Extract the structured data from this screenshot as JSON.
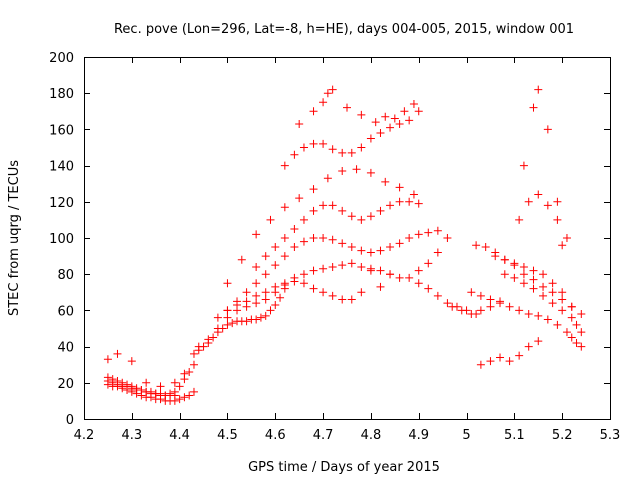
{
  "chart_data": {
    "type": "scatter",
    "title": "Rec. pove (Lon=296, Lat=-8, h=HE), days 004-005, 2015, window 001",
    "xlabel": "GPS time / Days of year 2015",
    "ylabel": "STEC from uqrg / TECUs",
    "xlim": [
      4.2,
      5.3
    ],
    "ylim": [
      0,
      200
    ],
    "xticks": [
      4.2,
      4.3,
      4.4,
      4.5,
      4.6,
      4.7,
      4.8,
      4.9,
      5.0,
      5.1,
      5.2,
      5.3
    ],
    "xtick_labels": [
      "4.2",
      "4.3",
      "4.4",
      "4.5",
      "4.6",
      "4.7",
      "4.8",
      "4.9",
      "5",
      "5.1",
      "5.2",
      "5.3"
    ],
    "yticks": [
      0,
      20,
      40,
      60,
      80,
      100,
      120,
      140,
      160,
      180,
      200
    ],
    "ytick_labels": [
      "0",
      "20",
      "40",
      "60",
      "80",
      "100",
      "120",
      "140",
      "160",
      "180",
      "200"
    ],
    "grid": false,
    "marker": "+",
    "color": "#ff0000",
    "series": [
      {
        "name": "STEC",
        "x": [
          4.25,
          4.26,
          4.27,
          4.28,
          4.29,
          4.3,
          4.31,
          4.32,
          4.33,
          4.34,
          4.35,
          4.36,
          4.37,
          4.38,
          4.39,
          4.4,
          4.41,
          4.42,
          4.25,
          4.26,
          4.27,
          4.28,
          4.29,
          4.3,
          4.31,
          4.32,
          4.33,
          4.34,
          4.35,
          4.36,
          4.37,
          4.38,
          4.39,
          4.4,
          4.41,
          4.42,
          4.43,
          4.25,
          4.26,
          4.27,
          4.28,
          4.29,
          4.3,
          4.31,
          4.32,
          4.33,
          4.34,
          4.35,
          4.36,
          4.37,
          4.38,
          4.39,
          4.25,
          4.27,
          4.3,
          4.33,
          4.36,
          4.39,
          4.41,
          4.43,
          4.43,
          4.44,
          4.45,
          4.46,
          4.47,
          4.48,
          4.49,
          4.5,
          4.51,
          4.52,
          4.53,
          4.54,
          4.55,
          4.56,
          4.57,
          4.58,
          4.59,
          4.6,
          4.61,
          4.62,
          4.44,
          4.46,
          4.48,
          4.5,
          4.52,
          4.54,
          4.56,
          4.58,
          4.6,
          4.62,
          4.64,
          4.66,
          4.68,
          4.7,
          4.72,
          4.74,
          4.76,
          4.78,
          4.8,
          4.82,
          4.84,
          4.48,
          4.5,
          4.52,
          4.54,
          4.56,
          4.58,
          4.6,
          4.62,
          4.64,
          4.66,
          4.68,
          4.7,
          4.72,
          4.74,
          4.76,
          4.78,
          4.5,
          4.52,
          4.54,
          4.56,
          4.58,
          4.6,
          4.62,
          4.64,
          4.66,
          4.68,
          4.7,
          4.72,
          4.74,
          4.76,
          4.78,
          4.8,
          4.82,
          4.84,
          4.86,
          4.88,
          4.9,
          4.92,
          4.94,
          4.56,
          4.58,
          4.6,
          4.62,
          4.64,
          4.66,
          4.68,
          4.7,
          4.72,
          4.74,
          4.76,
          4.78,
          4.8,
          4.82,
          4.84,
          4.86,
          4.88,
          4.9,
          4.5,
          4.53,
          4.56,
          4.59,
          4.62,
          4.65,
          4.68,
          4.71,
          4.74,
          4.77,
          4.8,
          4.83,
          4.86,
          4.89,
          4.62,
          4.64,
          4.66,
          4.68,
          4.7,
          4.72,
          4.74,
          4.76,
          4.78,
          4.8,
          4.82,
          4.84,
          4.86,
          4.88,
          4.9,
          4.65,
          4.68,
          4.7,
          4.71,
          4.72,
          4.75,
          4.78,
          4.81,
          4.83,
          4.85,
          4.87,
          4.89,
          4.8,
          4.84,
          4.88,
          4.9,
          4.92,
          4.94,
          4.96,
          4.98,
          5.0,
          5.02,
          4.82,
          4.86,
          4.9,
          4.92,
          4.94,
          4.96,
          5.01,
          5.03,
          5.05,
          5.07,
          5.09,
          5.11,
          5.13,
          5.15,
          5.17,
          5.19,
          5.21,
          5.22,
          5.23,
          5.24,
          5.08,
          5.1,
          5.12,
          5.14,
          5.16,
          5.18,
          5.2,
          5.22,
          5.23,
          5.24,
          5.06,
          5.08,
          5.1,
          5.12,
          5.14,
          5.16,
          5.18,
          5.2,
          5.22,
          5.11,
          5.13,
          5.15,
          5.17,
          5.19,
          5.21,
          5.12,
          5.14,
          5.15,
          5.17,
          5.19,
          5.2,
          5.03,
          5.05,
          5.07,
          5.09,
          5.11,
          5.13,
          5.15,
          5.02,
          5.04,
          5.06,
          5.08,
          5.1,
          5.12,
          5.14,
          5.16,
          5.18,
          5.2,
          5.22,
          5.24,
          4.97,
          4.99,
          5.01,
          5.03,
          5.05,
          5.07
        ],
        "y": [
          23,
          22,
          21,
          20,
          19,
          18,
          17,
          16,
          15,
          14,
          14,
          13,
          13,
          14,
          15,
          18,
          22,
          26,
          19,
          18,
          18,
          17,
          16,
          15,
          14,
          13,
          12,
          12,
          11,
          11,
          10,
          10,
          10,
          11,
          12,
          13,
          15,
          21,
          20,
          19,
          18,
          18,
          17,
          16,
          16,
          15,
          15,
          14,
          14,
          13,
          13,
          13,
          33,
          36,
          32,
          20,
          18,
          20,
          25,
          30,
          36,
          38,
          40,
          42,
          45,
          48,
          50,
          52,
          53,
          54,
          54,
          54,
          55,
          55,
          56,
          57,
          60,
          63,
          67,
          72,
          40,
          44,
          50,
          56,
          60,
          62,
          64,
          66,
          70,
          74,
          78,
          80,
          82,
          83,
          84,
          85,
          86,
          84,
          83,
          82,
          80,
          56,
          60,
          63,
          65,
          68,
          70,
          73,
          75,
          76,
          75,
          72,
          70,
          68,
          66,
          66,
          70,
          60,
          65,
          70,
          75,
          80,
          85,
          90,
          95,
          98,
          100,
          100,
          99,
          97,
          95,
          93,
          92,
          93,
          95,
          97,
          100,
          102,
          103,
          104,
          84,
          90,
          95,
          100,
          105,
          110,
          115,
          118,
          118,
          115,
          112,
          110,
          112,
          115,
          118,
          120,
          120,
          119,
          75,
          88,
          102,
          110,
          117,
          122,
          127,
          133,
          137,
          138,
          136,
          131,
          128,
          124,
          140,
          146,
          150,
          152,
          152,
          149,
          147,
          147,
          150,
          155,
          158,
          161,
          163,
          165,
          170,
          163,
          170,
          175,
          180,
          182,
          172,
          168,
          164,
          167,
          166,
          170,
          174,
          82,
          80,
          78,
          75,
          72,
          68,
          64,
          62,
          60,
          58,
          73,
          78,
          82,
          86,
          92,
          100,
          70,
          68,
          66,
          64,
          62,
          60,
          58,
          57,
          55,
          52,
          48,
          45,
          42,
          40,
          80,
          78,
          75,
          72,
          68,
          64,
          60,
          56,
          52,
          48,
          90,
          88,
          86,
          84,
          82,
          80,
          75,
          70,
          62,
          110,
          120,
          124,
          118,
          110,
          100,
          140,
          172,
          182,
          160,
          120,
          96,
          30,
          32,
          34,
          32,
          35,
          40,
          43,
          96,
          95,
          92,
          88,
          85,
          80,
          77,
          73,
          70,
          66,
          62,
          58,
          62,
          60,
          58,
          60,
          62,
          65
        ]
      }
    ]
  }
}
